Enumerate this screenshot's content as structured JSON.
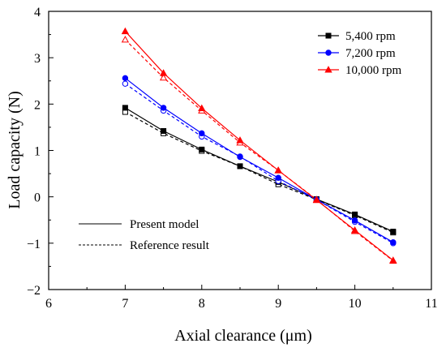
{
  "chart_data": {
    "type": "line",
    "title": "",
    "xlabel": "Axial clearance (μm)",
    "ylabel": "Load capacity (N)",
    "xlim": [
      6,
      11
    ],
    "ylim": [
      -2,
      4
    ],
    "xticks": [
      "6",
      "7",
      "8",
      "9",
      "10",
      "11"
    ],
    "yticks": [
      "4",
      "3",
      "2",
      "1",
      "0",
      "-1",
      "-2"
    ],
    "legend_position": "top-right",
    "series": [
      {
        "name": "5,400 rpm",
        "color": "#000000",
        "marker": "square",
        "present_model": {
          "x": [
            7,
            7.5,
            8,
            8.5,
            9,
            9.5,
            10,
            10.5
          ],
          "y": [
            1.92,
            1.42,
            1.02,
            0.66,
            0.32,
            -0.05,
            -0.38,
            -0.75
          ]
        },
        "reference_result": {
          "x": [
            7,
            7.5,
            8,
            8.5,
            9,
            9.5,
            10,
            10.5
          ],
          "y": [
            1.83,
            1.37,
            0.99,
            0.66,
            0.27,
            -0.06,
            -0.4,
            -0.77
          ]
        }
      },
      {
        "name": "7,200 rpm",
        "color": "#0000ff",
        "marker": "circle",
        "present_model": {
          "x": [
            7,
            7.5,
            8,
            8.5,
            9,
            9.5,
            10,
            10.5
          ],
          "y": [
            2.56,
            1.92,
            1.37,
            0.86,
            0.41,
            -0.06,
            -0.51,
            -0.98
          ]
        },
        "reference_result": {
          "x": [
            7,
            7.5,
            8,
            8.5,
            9,
            9.5,
            10,
            10.5
          ],
          "y": [
            2.44,
            1.86,
            1.3,
            0.87,
            0.34,
            -0.06,
            -0.54,
            -1.0
          ]
        }
      },
      {
        "name": "10,000 rpm",
        "color": "#ff0000",
        "marker": "triangle",
        "present_model": {
          "x": [
            7,
            7.5,
            8,
            8.5,
            9,
            9.5,
            10,
            10.5
          ],
          "y": [
            3.57,
            2.67,
            1.91,
            1.22,
            0.57,
            -0.07,
            -0.72,
            -1.37
          ]
        },
        "reference_result": {
          "x": [
            7,
            7.5,
            8,
            8.5,
            9,
            9.5,
            10,
            10.5
          ],
          "y": [
            3.39,
            2.57,
            1.86,
            1.17,
            0.57,
            -0.06,
            -0.74,
            -1.38
          ]
        }
      }
    ],
    "line_style_legend": [
      {
        "label": "Present model",
        "style": "solid"
      },
      {
        "label": "Reference result",
        "style": "dashed"
      }
    ]
  }
}
